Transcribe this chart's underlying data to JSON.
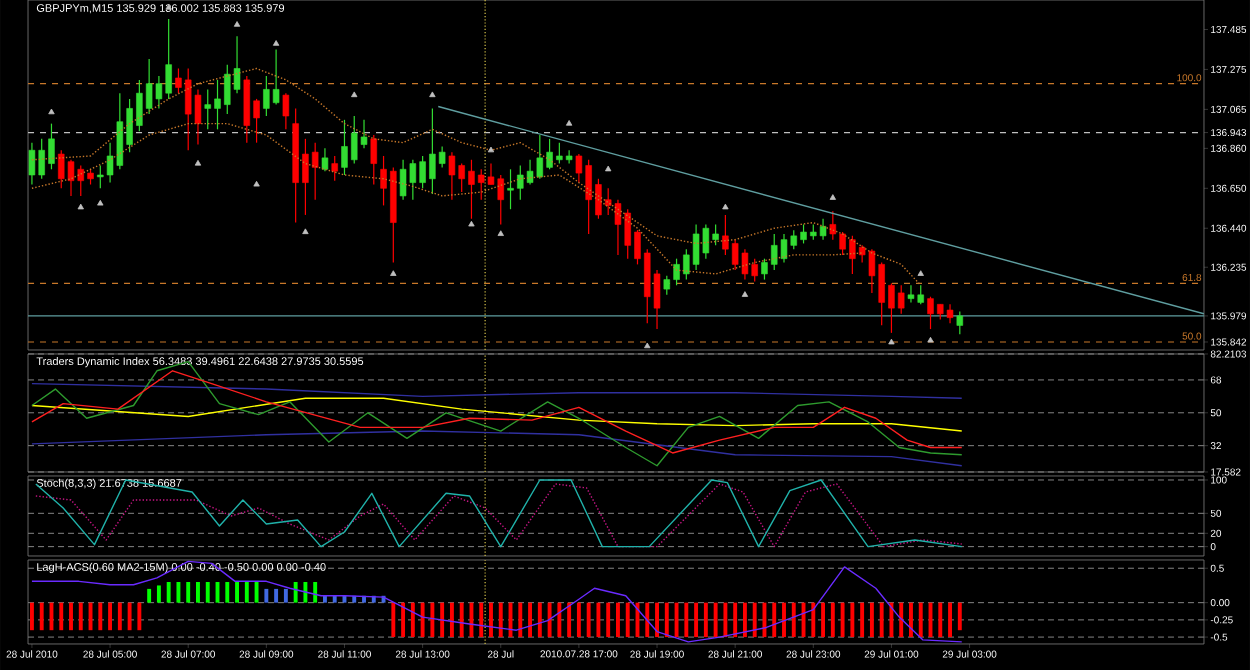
{
  "chart_data": [
    {
      "type": "candlestick",
      "title": "GBPJPYm,M15 135.929 136.002 135.883 135.979",
      "tick_labels": "y",
      "xlim": [
        "2010-07-28T02:54",
        "2010-07-29T09:00"
      ],
      "ylim": [
        135.8,
        137.64
      ],
      "yticks": [
        137.485,
        137.275,
        137.065,
        136.943,
        {
          "value": 136.86,
          "label": "136.860"
        },
        {
          "value": 136.65,
          "label": "136.650"
        },
        {
          "value": 136.44,
          "label": "136.440"
        },
        136.235,
        135.979,
        135.842
      ],
      "x": [
        "2010-07-28T03:00",
        "2010-07-28T03:15",
        "2010-07-28T03:30",
        "2010-07-28T03:45",
        "2010-07-28T04:00",
        "2010-07-28T04:15",
        "2010-07-28T04:30",
        "2010-07-28T04:45",
        "2010-07-28T05:00",
        "2010-07-28T05:15",
        "2010-07-28T05:30",
        "2010-07-28T05:45",
        "2010-07-28T06:00",
        "2010-07-28T06:15",
        "2010-07-28T06:30",
        "2010-07-28T06:45",
        "2010-07-28T07:00",
        "2010-07-28T07:15",
        "2010-07-28T07:30",
        "2010-07-28T07:45",
        "2010-07-28T08:00",
        "2010-07-28T08:15",
        "2010-07-28T08:30",
        "2010-07-28T08:45",
        "2010-07-28T09:00",
        "2010-07-28T09:15",
        "2010-07-28T09:30",
        "2010-07-28T09:45",
        "2010-07-28T10:00",
        "2010-07-28T10:15",
        "2010-07-28T10:30",
        "2010-07-28T10:45",
        "2010-07-28T11:00",
        "2010-07-28T11:15",
        "2010-07-28T11:30",
        "2010-07-28T11:45",
        "2010-07-28T12:00",
        "2010-07-28T12:15",
        "2010-07-28T12:30",
        "2010-07-28T12:45",
        "2010-07-28T13:00",
        "2010-07-28T13:15",
        "2010-07-28T13:30",
        "2010-07-28T13:45",
        "2010-07-28T14:00",
        "2010-07-28T14:15",
        "2010-07-28T14:30",
        "2010-07-28T14:45",
        "2010-07-28T15:00",
        "2010-07-28T15:15",
        "2010-07-28T15:30",
        "2010-07-28T15:45",
        "2010-07-28T16:00",
        "2010-07-28T16:15",
        "2010-07-28T16:30",
        "2010-07-28T16:45",
        "2010-07-28T17:00",
        "2010-07-28T17:15",
        "2010-07-28T17:30",
        "2010-07-28T17:45",
        "2010-07-28T18:00",
        "2010-07-28T18:15",
        "2010-07-28T18:30",
        "2010-07-28T18:45",
        "2010-07-28T19:00",
        "2010-07-28T19:15",
        "2010-07-28T19:30",
        "2010-07-28T19:45",
        "2010-07-28T20:00",
        "2010-07-28T20:15",
        "2010-07-28T20:30",
        "2010-07-28T20:45",
        "2010-07-28T21:00",
        "2010-07-28T21:15",
        "2010-07-28T21:30",
        "2010-07-28T21:45",
        "2010-07-28T22:00",
        "2010-07-28T22:15",
        "2010-07-28T22:30",
        "2010-07-28T22:45",
        "2010-07-28T23:00",
        "2010-07-28T23:15",
        "2010-07-28T23:30",
        "2010-07-28T23:45",
        "2010-07-29T00:00",
        "2010-07-29T00:15",
        "2010-07-29T00:30",
        "2010-07-29T00:45",
        "2010-07-29T01:00",
        "2010-07-29T01:15",
        "2010-07-29T01:30",
        "2010-07-29T01:45",
        "2010-07-29T02:00",
        "2010-07-29T02:15",
        "2010-07-29T02:30",
        "2010-07-29T02:45"
      ],
      "ohlc": [
        [
          136.72,
          136.89,
          136.67,
          136.85
        ],
        [
          136.72,
          136.91,
          136.7,
          136.85
        ],
        [
          136.78,
          136.99,
          136.75,
          136.91
        ],
        [
          136.83,
          136.85,
          136.65,
          136.7
        ],
        [
          136.79,
          136.8,
          136.61,
          136.69
        ],
        [
          136.75,
          136.77,
          136.61,
          136.69
        ],
        [
          136.73,
          136.75,
          136.67,
          136.7
        ],
        [
          136.71,
          136.77,
          136.65,
          136.72
        ],
        [
          136.72,
          136.89,
          136.68,
          136.82
        ],
        [
          136.77,
          137.15,
          136.75,
          137.0
        ],
        [
          136.88,
          137.12,
          136.84,
          137.07
        ],
        [
          136.98,
          137.22,
          136.95,
          137.15
        ],
        [
          137.07,
          137.33,
          137.04,
          137.2
        ],
        [
          137.12,
          137.24,
          137.07,
          137.2
        ],
        [
          137.15,
          137.54,
          137.12,
          137.3
        ],
        [
          137.23,
          137.28,
          137.15,
          137.18
        ],
        [
          137.22,
          137.28,
          136.85,
          137.04
        ],
        [
          137.14,
          137.17,
          136.88,
          136.99
        ],
        [
          137.07,
          137.17,
          136.96,
          137.09
        ],
        [
          137.07,
          137.22,
          136.96,
          137.12
        ],
        [
          137.09,
          137.3,
          137.04,
          137.25
        ],
        [
          137.17,
          137.45,
          137.15,
          137.28
        ],
        [
          137.22,
          137.24,
          136.89,
          136.98
        ],
        [
          137.11,
          137.12,
          136.89,
          137.02
        ],
        [
          137.07,
          137.24,
          137.03,
          137.17
        ],
        [
          137.1,
          137.38,
          137.09,
          137.17
        ],
        [
          137.14,
          137.15,
          136.96,
          137.03
        ],
        [
          136.99,
          137.07,
          136.47,
          136.68
        ],
        [
          136.83,
          136.91,
          136.51,
          136.68
        ],
        [
          136.84,
          136.89,
          136.59,
          136.76
        ],
        [
          136.75,
          136.86,
          136.74,
          136.81
        ],
        [
          136.78,
          136.82,
          136.69,
          136.74
        ],
        [
          136.76,
          137.01,
          136.72,
          136.87
        ],
        [
          136.8,
          137.03,
          136.78,
          136.94
        ],
        [
          136.88,
          137.01,
          136.86,
          136.92
        ],
        [
          136.91,
          136.93,
          136.67,
          136.78
        ],
        [
          136.75,
          136.82,
          136.56,
          136.65
        ],
        [
          136.74,
          136.76,
          136.26,
          136.47
        ],
        [
          136.61,
          136.8,
          136.59,
          136.75
        ],
        [
          136.68,
          136.8,
          136.59,
          136.78
        ],
        [
          136.68,
          136.82,
          136.65,
          136.79
        ],
        [
          136.7,
          137.07,
          136.62,
          136.83
        ],
        [
          136.78,
          136.87,
          136.76,
          136.84
        ],
        [
          136.82,
          136.84,
          136.59,
          136.72
        ],
        [
          136.77,
          136.78,
          136.63,
          136.7
        ],
        [
          136.74,
          136.8,
          136.49,
          136.67
        ],
        [
          136.72,
          136.75,
          136.59,
          136.68
        ],
        [
          136.71,
          136.78,
          136.67,
          136.67
        ],
        [
          136.7,
          136.72,
          136.46,
          136.59
        ],
        [
          136.64,
          136.75,
          136.54,
          136.65
        ],
        [
          136.65,
          136.77,
          136.59,
          136.72
        ],
        [
          136.68,
          136.8,
          136.67,
          136.74
        ],
        [
          136.71,
          136.93,
          136.7,
          136.81
        ],
        [
          136.76,
          136.91,
          136.75,
          136.84
        ],
        [
          136.8,
          136.89,
          136.78,
          136.82
        ],
        [
          136.8,
          136.85,
          136.78,
          136.82
        ],
        [
          136.82,
          136.83,
          136.68,
          136.73
        ],
        [
          136.77,
          136.8,
          136.41,
          136.59
        ],
        [
          136.67,
          136.7,
          136.49,
          136.51
        ],
        [
          136.59,
          136.65,
          136.51,
          136.56
        ],
        [
          136.57,
          136.59,
          136.3,
          136.46
        ],
        [
          136.52,
          136.54,
          136.28,
          136.35
        ],
        [
          136.42,
          136.43,
          136.25,
          136.28
        ],
        [
          136.31,
          136.33,
          135.94,
          136.08
        ],
        [
          136.2,
          136.22,
          135.91,
          136.02
        ],
        [
          136.12,
          136.19,
          136.09,
          136.17
        ],
        [
          136.17,
          136.28,
          136.14,
          136.25
        ],
        [
          136.2,
          136.33,
          136.17,
          136.3
        ],
        [
          136.25,
          136.46,
          136.22,
          136.41
        ],
        [
          136.31,
          136.46,
          136.28,
          136.44
        ],
        [
          136.38,
          136.46,
          136.35,
          136.41
        ],
        [
          136.4,
          136.51,
          136.3,
          136.33
        ],
        [
          136.36,
          136.38,
          136.22,
          136.25
        ],
        [
          136.31,
          136.33,
          136.17,
          136.2
        ],
        [
          136.25,
          136.28,
          136.16,
          136.19
        ],
        [
          136.2,
          136.28,
          136.17,
          136.26
        ],
        [
          136.25,
          136.41,
          136.22,
          136.35
        ],
        [
          136.28,
          136.41,
          136.26,
          136.38
        ],
        [
          136.35,
          136.43,
          136.33,
          136.4
        ],
        [
          136.38,
          136.46,
          136.36,
          136.42
        ],
        [
          136.4,
          136.46,
          136.38,
          136.42
        ],
        [
          136.4,
          136.49,
          136.38,
          136.45
        ],
        [
          136.46,
          136.53,
          136.38,
          136.41
        ],
        [
          136.41,
          136.42,
          136.3,
          136.33
        ],
        [
          136.38,
          136.4,
          136.2,
          136.28
        ],
        [
          136.34,
          136.35,
          136.26,
          136.3
        ],
        [
          136.32,
          136.33,
          136.1,
          136.19
        ],
        [
          136.25,
          136.26,
          135.93,
          136.05
        ],
        [
          136.14,
          136.15,
          135.89,
          136.02
        ],
        [
          136.1,
          136.14,
          135.99,
          136.02
        ],
        [
          136.07,
          136.14,
          136.05,
          136.09
        ],
        [
          136.05,
          136.14,
          136.04,
          136.09
        ],
        [
          136.07,
          136.08,
          135.91,
          135.99
        ],
        [
          136.04,
          136.04,
          135.96,
          135.99
        ],
        [
          136.01,
          136.04,
          135.94,
          135.97
        ],
        [
          135.929,
          136.002,
          135.883,
          135.979
        ]
      ],
      "colors": [
        "#33dd33",
        "#33dd33",
        "#33dd33",
        "#ff0000",
        "#ff0000",
        "#ff0000",
        "#ff0000",
        "#33dd33",
        "#33dd33",
        "#33dd33",
        "#33dd33",
        "#33dd33",
        "#33dd33",
        "#33dd33",
        "#33dd33",
        "#ff0000",
        "#ff0000",
        "#ff0000",
        "#33dd33",
        "#33dd33",
        "#33dd33",
        "#33dd33",
        "#ff0000",
        "#ff0000",
        "#33dd33",
        "#33dd33",
        "#ff0000",
        "#ff0000",
        "#ff0000",
        "#ff0000",
        "#33dd33",
        "#ff0000",
        "#33dd33",
        "#33dd33",
        "#33dd33",
        "#ff0000",
        "#ff0000",
        "#ff0000",
        "#33dd33",
        "#33dd33",
        "#33dd33",
        "#33dd33",
        "#33dd33",
        "#ff0000",
        "#ff0000",
        "#ff0000",
        "#ff0000",
        "#ff0000",
        "#ff0000",
        "#33dd33",
        "#33dd33",
        "#33dd33",
        "#33dd33",
        "#33dd33",
        "#33dd33",
        "#33dd33",
        "#ff0000",
        "#ff0000",
        "#ff0000",
        "#ff0000",
        "#ff0000",
        "#ff0000",
        "#ff0000",
        "#ff0000",
        "#ff0000",
        "#33dd33",
        "#33dd33",
        "#33dd33",
        "#33dd33",
        "#33dd33",
        "#33dd33",
        "#ff0000",
        "#ff0000",
        "#ff0000",
        "#ff0000",
        "#33dd33",
        "#33dd33",
        "#33dd33",
        "#33dd33",
        "#33dd33",
        "#33dd33",
        "#33dd33",
        "#ff0000",
        "#ff0000",
        "#ff0000",
        "#ff0000",
        "#ff0000",
        "#ff0000",
        "#ff0000",
        "#ff0000",
        "#33dd33",
        "#33dd33",
        "#ff0000",
        "#ff0000",
        "#ff0000",
        "#33dd33"
      ],
      "ref_lines": [
        {
          "axis": "y",
          "value": 137.2,
          "color": "#c8782a",
          "line_style": "dashed"
        },
        {
          "axis": "y",
          "value": 136.943,
          "color": "#c0c0c0",
          "line_style": "dashed"
        },
        {
          "axis": "y",
          "value": 136.15,
          "color": "#c8782a",
          "line_style": "dashed"
        },
        {
          "axis": "y",
          "value": 135.979,
          "color": "#5f9ea0",
          "line_style": "solid"
        },
        {
          "axis": "y",
          "value": 135.842,
          "color": "#c8782a",
          "line_style": "dashed"
        },
        {
          "axis": "x",
          "value": "2010-07-28T14:36",
          "color": "#d4c04a",
          "line_style": "dotted"
        }
      ],
      "annotations": [
        {
          "text": "100.0",
          "x": "2010-07-29T09:00",
          "y": 137.2
        },
        {
          "text": "61.8",
          "x": "2010-07-29T09:00",
          "y": 136.15
        },
        {
          "text": "50.0",
          "x": "2010-07-29T09:00",
          "y": 135.842
        }
      ],
      "series": [
        {
          "type": "line",
          "color": "#5f9ea0",
          "x": [
            "2010-07-28T13:24",
            "2010-07-29T09:00"
          ],
          "values": [
            137.08,
            135.99
          ]
        },
        {
          "type": "line",
          "color": "#c8782a",
          "line_style": "dotted",
          "x": [
            "2010-07-28T03:00",
            "2010-07-28T04:30",
            "2010-07-28T05:30",
            "2010-07-28T06:30",
            "2010-07-28T07:15",
            "2010-07-28T08:00",
            "2010-07-28T08:45",
            "2010-07-28T09:30",
            "2010-07-28T10:15",
            "2010-07-28T11:00",
            "2010-07-28T11:45",
            "2010-07-28T12:30",
            "2010-07-28T13:15",
            "2010-07-28T14:00",
            "2010-07-28T14:45",
            "2010-07-28T15:30",
            "2010-07-28T16:15",
            "2010-07-28T17:00",
            "2010-07-28T18:00",
            "2010-07-28T19:00",
            "2010-07-28T20:00",
            "2010-07-28T21:00",
            "2010-07-28T22:00",
            "2010-07-28T23:00",
            "2010-07-28T23:45",
            "2010-07-29T00:30",
            "2010-07-29T01:15",
            "2010-07-29T01:45"
          ],
          "values": [
            136.8,
            136.82,
            136.99,
            137.12,
            137.2,
            137.24,
            137.28,
            137.22,
            137.12,
            136.99,
            136.91,
            136.89,
            136.96,
            136.89,
            136.85,
            136.89,
            136.8,
            136.68,
            136.54,
            136.4,
            136.36,
            136.38,
            136.44,
            136.47,
            136.41,
            136.31,
            136.25,
            136.14
          ]
        },
        {
          "type": "line",
          "color": "#c8782a",
          "line_style": "dotted",
          "x": [
            "2010-07-28T03:00",
            "2010-07-28T04:00",
            "2010-07-28T05:00",
            "2010-07-28T06:00",
            "2010-07-28T07:00",
            "2010-07-28T08:00",
            "2010-07-28T09:00",
            "2010-07-28T10:00",
            "2010-07-28T11:00",
            "2010-07-28T12:00",
            "2010-07-28T12:45",
            "2010-07-28T13:30",
            "2010-07-28T14:30",
            "2010-07-28T15:30",
            "2010-07-28T16:30",
            "2010-07-28T17:30",
            "2010-07-28T18:30",
            "2010-07-28T19:30",
            "2010-07-28T20:30",
            "2010-07-28T21:30",
            "2010-07-28T22:30",
            "2010-07-28T23:30",
            "2010-07-29T00:15"
          ],
          "values": [
            136.65,
            136.7,
            136.8,
            136.93,
            136.99,
            136.99,
            136.93,
            136.78,
            136.72,
            136.7,
            136.66,
            136.61,
            136.63,
            136.7,
            136.72,
            136.59,
            136.44,
            136.22,
            136.2,
            136.26,
            136.3,
            136.3,
            136.31
          ]
        },
        {
          "type": "scatter",
          "color": "#c0c0c0",
          "marker": "triangle",
          "x": [
            "2010-07-28T03:30",
            "2010-07-28T06:30",
            "2010-07-28T08:15",
            "2010-07-28T09:15",
            "2010-07-28T11:15",
            "2010-07-28T13:15",
            "2010-07-28T14:45",
            "2010-07-28T16:45",
            "2010-07-28T17:45",
            "2010-07-28T20:45",
            "2010-07-28T23:30",
            "2010-07-29T01:45"
          ],
          "values": [
            137.05,
            137.6,
            137.51,
            137.41,
            137.14,
            137.14,
            136.85,
            136.99,
            136.75,
            136.55,
            136.6,
            136.2
          ]
        },
        {
          "type": "scatter",
          "color": "#c0c0c0",
          "marker": "triangle",
          "x": [
            "2010-07-28T04:15",
            "2010-07-28T04:45",
            "2010-07-28T07:15",
            "2010-07-28T08:45",
            "2010-07-28T10:00",
            "2010-07-28T12:15",
            "2010-07-28T14:15",
            "2010-07-28T15:00",
            "2010-07-28T18:45",
            "2010-07-28T21:15",
            "2010-07-29T01:00",
            "2010-07-29T02:00"
          ],
          "values": [
            136.55,
            136.57,
            136.78,
            136.67,
            136.42,
            136.2,
            136.46,
            136.41,
            135.82,
            136.09,
            135.84,
            135.85
          ]
        }
      ]
    },
    {
      "type": "line",
      "title": "Traders Dynamic Index 56.3483 39.4961 22.6438 27.9735 30.5595",
      "tick_labels": "y",
      "xlim": [
        "2010-07-28T02:54",
        "2010-07-29T09:00"
      ],
      "ylim": [
        17.582,
        82.2103
      ],
      "yticks": [
        82.2103,
        68,
        50,
        32,
        17.582
      ],
      "grid": "y",
      "ref_lines": [
        {
          "axis": "x",
          "value": "2010-07-28T14:36",
          "color": "#d4c04a",
          "line_style": "dotted"
        }
      ],
      "series": [
        {
          "color": "#3030a0",
          "x": [
            "2010-07-28T03:00",
            "2010-07-28T09:00",
            "2010-07-28T13:00",
            "2010-07-28T17:00",
            "2010-07-28T21:00",
            "2010-07-29T01:00",
            "2010-07-29T02:48"
          ],
          "values": [
            66,
            63,
            59,
            61,
            61,
            59,
            58
          ]
        },
        {
          "color": "#3030a0",
          "x": [
            "2010-07-28T03:00",
            "2010-07-28T09:00",
            "2010-07-28T13:00",
            "2010-07-28T17:00",
            "2010-07-28T21:00",
            "2010-07-29T01:00",
            "2010-07-29T02:48"
          ],
          "values": [
            33,
            38,
            40,
            38,
            27,
            26,
            21
          ]
        },
        {
          "color": "#ffff00",
          "x": [
            "2010-07-28T03:00",
            "2010-07-28T07:00",
            "2010-07-28T10:00",
            "2010-07-28T12:00",
            "2010-07-28T14:00",
            "2010-07-28T17:00",
            "2010-07-28T19:00",
            "2010-07-28T21:00",
            "2010-07-28T23:00",
            "2010-07-29T01:00",
            "2010-07-29T02:48"
          ],
          "values": [
            54,
            48,
            58,
            58,
            52,
            46,
            44,
            43,
            44,
            44,
            40
          ]
        },
        {
          "color": "#2e9b2e",
          "x": [
            "2010-07-28T03:00",
            "2010-07-28T03:36",
            "2010-07-28T04:24",
            "2010-07-28T05:36",
            "2010-07-28T06:12",
            "2010-07-28T07:00",
            "2010-07-28T07:48",
            "2010-07-28T08:48",
            "2010-07-28T09:36",
            "2010-07-28T10:36",
            "2010-07-28T11:36",
            "2010-07-28T12:36",
            "2010-07-28T13:36",
            "2010-07-28T15:00",
            "2010-07-28T16:12",
            "2010-07-28T17:00",
            "2010-07-28T18:12",
            "2010-07-28T19:00",
            "2010-07-28T19:48",
            "2010-07-28T20:36",
            "2010-07-28T21:36",
            "2010-07-28T22:36",
            "2010-07-28T23:24",
            "2010-07-29T00:24",
            "2010-07-29T01:12",
            "2010-07-29T02:00",
            "2010-07-29T02:48"
          ],
          "values": [
            54,
            63,
            47,
            54,
            73,
            78,
            55,
            49,
            56,
            34,
            50,
            36,
            50,
            40,
            56,
            47,
            31,
            21,
            42,
            48,
            36,
            54,
            56,
            45,
            31,
            28,
            27
          ]
        },
        {
          "color": "#ff2020",
          "x": [
            "2010-07-28T03:00",
            "2010-07-28T03:48",
            "2010-07-28T05:12",
            "2010-07-28T06:36",
            "2010-07-28T07:36",
            "2010-07-28T09:00",
            "2010-07-28T10:12",
            "2010-07-28T11:24",
            "2010-07-28T13:00",
            "2010-07-28T14:12",
            "2010-07-28T15:48",
            "2010-07-28T17:00",
            "2010-07-28T18:12",
            "2010-07-28T19:24",
            "2010-07-28T20:36",
            "2010-07-28T22:00",
            "2010-07-28T23:00",
            "2010-07-28T23:48",
            "2010-07-29T00:36",
            "2010-07-29T01:24",
            "2010-07-29T02:00",
            "2010-07-29T02:48"
          ],
          "values": [
            45,
            55,
            52,
            73,
            66,
            56,
            49,
            42,
            42,
            47,
            46,
            53,
            40,
            28,
            35,
            42,
            42,
            53,
            47,
            35,
            31,
            31
          ]
        }
      ]
    },
    {
      "type": "line",
      "title": "Stoch(8,3,3) 21.6738 15.6687",
      "tick_labels": "y",
      "xlim": [
        "2010-07-28T02:54",
        "2010-07-29T09:00"
      ],
      "ylim": [
        -14,
        106
      ],
      "yticks": [
        100,
        50,
        20,
        0
      ],
      "grid": "y",
      "ref_lines": [
        {
          "axis": "x",
          "value": "2010-07-28T14:36",
          "color": "#d4c04a",
          "line_style": "dotted"
        }
      ],
      "series": [
        {
          "color": "#c71585",
          "line_style": "dotted",
          "x": [
            "2010-07-28T03:06",
            "2010-07-28T04:00",
            "2010-07-28T04:54",
            "2010-07-28T05:36",
            "2010-07-28T07:12",
            "2010-07-28T08:06",
            "2010-07-28T08:48",
            "2010-07-28T09:36",
            "2010-07-28T10:36",
            "2010-07-28T11:24",
            "2010-07-28T12:00",
            "2010-07-28T12:48",
            "2010-07-28T13:48",
            "2010-07-28T14:36",
            "2010-07-28T15:24",
            "2010-07-28T16:24",
            "2010-07-28T17:12",
            "2010-07-28T18:00",
            "2010-07-28T19:00",
            "2010-07-28T20:36",
            "2010-07-28T21:12",
            "2010-07-28T22:00",
            "2010-07-28T22:48",
            "2010-07-28T23:36",
            "2010-07-29T00:48",
            "2010-07-29T01:48",
            "2010-07-29T02:48"
          ],
          "values": [
            76,
            70,
            10,
            70,
            70,
            46,
            58,
            34,
            10,
            46,
            64,
            10,
            76,
            58,
            10,
            94,
            88,
            0,
            0,
            94,
            82,
            0,
            82,
            94,
            0,
            10,
            4
          ]
        },
        {
          "color": "#20b2aa",
          "x": [
            "2010-07-28T03:06",
            "2010-07-28T03:48",
            "2010-07-28T04:36",
            "2010-07-28T05:24",
            "2010-07-28T07:06",
            "2010-07-28T07:48",
            "2010-07-28T08:24",
            "2010-07-28T09:00",
            "2010-07-28T09:48",
            "2010-07-28T10:24",
            "2010-07-28T11:00",
            "2010-07-28T11:42",
            "2010-07-28T12:24",
            "2010-07-28T13:36",
            "2010-07-28T14:12",
            "2010-07-28T15:00",
            "2010-07-28T16:00",
            "2010-07-28T16:48",
            "2010-07-28T17:36",
            "2010-07-28T18:48",
            "2010-07-28T20:24",
            "2010-07-28T20:48",
            "2010-07-28T21:36",
            "2010-07-28T22:24",
            "2010-07-28T23:12",
            "2010-07-29T00:24",
            "2010-07-29T01:36",
            "2010-07-29T02:48"
          ],
          "values": [
            94,
            58,
            3,
            100,
            82,
            31,
            70,
            34,
            40,
            0,
            22,
            80,
            0,
            80,
            76,
            0,
            100,
            100,
            0,
            0,
            100,
            96,
            0,
            84,
            100,
            0,
            10,
            0
          ]
        }
      ]
    },
    {
      "type": "bar",
      "title": "LagH-ACS(0.60 MA2-15M) 0.00 -0.40 -0.50 0.00 0.00 -0.40",
      "xlim": [
        "2010-07-28T02:54",
        "2010-07-29T09:00"
      ],
      "ylim": [
        -0.6,
        0.62
      ],
      "x": [
        "2010-07-28T03:00",
        "2010-07-28T03:15",
        "2010-07-28T03:30",
        "2010-07-28T03:45",
        "2010-07-28T04:00",
        "2010-07-28T04:15",
        "2010-07-28T04:30",
        "2010-07-28T04:45",
        "2010-07-28T05:00",
        "2010-07-28T05:15",
        "2010-07-28T05:30",
        "2010-07-28T05:45",
        "2010-07-28T06:00",
        "2010-07-28T06:15",
        "2010-07-28T06:30",
        "2010-07-28T06:45",
        "2010-07-28T07:00",
        "2010-07-28T07:15",
        "2010-07-28T07:30",
        "2010-07-28T07:45",
        "2010-07-28T08:00",
        "2010-07-28T08:15",
        "2010-07-28T08:30",
        "2010-07-28T08:45",
        "2010-07-28T09:00",
        "2010-07-28T09:15",
        "2010-07-28T09:30",
        "2010-07-28T09:45",
        "2010-07-28T10:00",
        "2010-07-28T10:15",
        "2010-07-28T10:30",
        "2010-07-28T10:45",
        "2010-07-28T11:00",
        "2010-07-28T11:15",
        "2010-07-28T11:30",
        "2010-07-28T11:45",
        "2010-07-28T12:00",
        "2010-07-28T12:15",
        "2010-07-28T12:30",
        "2010-07-28T12:45",
        "2010-07-28T13:00",
        "2010-07-28T13:15",
        "2010-07-28T13:30",
        "2010-07-28T13:45",
        "2010-07-28T14:00",
        "2010-07-28T14:15",
        "2010-07-28T14:30",
        "2010-07-28T14:45",
        "2010-07-28T15:00",
        "2010-07-28T15:15",
        "2010-07-28T15:30",
        "2010-07-28T15:45",
        "2010-07-28T16:00",
        "2010-07-28T16:15",
        "2010-07-28T16:30",
        "2010-07-28T16:45",
        "2010-07-28T17:00",
        "2010-07-28T17:15",
        "2010-07-28T17:30",
        "2010-07-28T17:45",
        "2010-07-28T18:00",
        "2010-07-28T18:15",
        "2010-07-28T18:30",
        "2010-07-28T18:45",
        "2010-07-28T19:00",
        "2010-07-28T19:15",
        "2010-07-28T19:30",
        "2010-07-28T19:45",
        "2010-07-28T20:00",
        "2010-07-28T20:15",
        "2010-07-28T20:30",
        "2010-07-28T20:45",
        "2010-07-28T21:00",
        "2010-07-28T21:15",
        "2010-07-28T21:30",
        "2010-07-28T21:45",
        "2010-07-28T22:00",
        "2010-07-28T22:15",
        "2010-07-28T22:30",
        "2010-07-28T22:45",
        "2010-07-28T23:00",
        "2010-07-28T23:15",
        "2010-07-28T23:30",
        "2010-07-28T23:45",
        "2010-07-29T00:00",
        "2010-07-29T00:15",
        "2010-07-29T00:30",
        "2010-07-29T00:45",
        "2010-07-29T01:00",
        "2010-07-29T01:15",
        "2010-07-29T01:30",
        "2010-07-29T01:45",
        "2010-07-29T02:00",
        "2010-07-29T02:15",
        "2010-07-29T02:30",
        "2010-07-29T02:45"
      ],
      "xticks": [
        {
          "value": "2010-07-28T03:00",
          "label": "28 Jul 2010"
        },
        {
          "value": "2010-07-28T05:00",
          "label": "28 Jul 05:00"
        },
        {
          "value": "2010-07-28T07:00",
          "label": "28 Jul 07:00"
        },
        {
          "value": "2010-07-28T09:00",
          "label": "28 Jul 09:00"
        },
        {
          "value": "2010-07-28T11:00",
          "label": "28 Jul 11:00"
        },
        {
          "value": "2010-07-28T13:00",
          "label": "28 Jul 13:00"
        },
        {
          "value": "2010-07-28T15:00",
          "label": "28 Jul"
        },
        {
          "value": "2010-07-28T17:00",
          "label": "2010.07.28 17:00"
        },
        {
          "value": "2010-07-28T19:00",
          "label": "28 Jul 19:00"
        },
        {
          "value": "2010-07-28T21:00",
          "label": "28 Jul 21:00"
        },
        {
          "value": "2010-07-28T23:00",
          "label": "28 Jul 23:00"
        },
        {
          "value": "2010-07-29T01:00",
          "label": "29 Jul 01:00"
        },
        {
          "value": "2010-07-29T03:00",
          "label": "29 Jul 03:00"
        }
      ],
      "yticks": [
        0.5,
        {
          "value": 0,
          "label": "0.00"
        },
        -0.25,
        -0.5
      ],
      "grid": "y",
      "ref_lines": [
        {
          "axis": "x",
          "value": "2010-07-28T14:36",
          "color": "#d4c04a",
          "line_style": "dotted"
        }
      ],
      "series": [
        {
          "type": "bar",
          "values": [
            -0.4,
            -0.4,
            -0.4,
            -0.4,
            -0.4,
            -0.4,
            -0.4,
            -0.4,
            -0.4,
            -0.4,
            -0.4,
            -0.4,
            0.2,
            0.25,
            0.3,
            0.3,
            0.3,
            0.3,
            0.3,
            0.3,
            0.3,
            0.3,
            0.3,
            0.3,
            0.2,
            0.2,
            0.2,
            0.3,
            0.3,
            0.3,
            0.1,
            0.1,
            0.1,
            0.1,
            0.1,
            0.1,
            0.1,
            -0.5,
            -0.5,
            -0.5,
            -0.5,
            -0.5,
            -0.5,
            -0.5,
            -0.5,
            -0.5,
            -0.5,
            -0.5,
            -0.5,
            -0.5,
            -0.5,
            -0.5,
            -0.5,
            -0.5,
            -0.5,
            -0.5,
            -0.5,
            -0.5,
            -0.5,
            -0.5,
            -0.5,
            -0.5,
            -0.5,
            -0.5,
            -0.5,
            -0.5,
            -0.5,
            -0.5,
            -0.5,
            -0.5,
            -0.5,
            -0.5,
            -0.5,
            -0.5,
            -0.5,
            -0.5,
            -0.5,
            -0.5,
            -0.5,
            -0.5,
            -0.5,
            -0.5,
            -0.5,
            -0.5,
            -0.5,
            -0.5,
            -0.5,
            -0.5,
            -0.5,
            -0.5,
            -0.5,
            -0.5,
            -0.5,
            -0.5,
            -0.5,
            -0.4
          ],
          "colors": [
            "#ff0000",
            "#ff0000",
            "#ff0000",
            "#ff0000",
            "#ff0000",
            "#ff0000",
            "#ff0000",
            "#ff0000",
            "#ff0000",
            "#ff0000",
            "#ff0000",
            "#ff0000",
            "#00ff00",
            "#00ff00",
            "#00ff00",
            "#00ff00",
            "#00ff00",
            "#00ff00",
            "#00ff00",
            "#00ff00",
            "#00ff00",
            "#00ff00",
            "#00ff00",
            "#00ff00",
            "#4169e1",
            "#4169e1",
            "#4169e1",
            "#00ff00",
            "#00ff00",
            "#00ff00",
            "#4169e1",
            "#4169e1",
            "#4169e1",
            "#4169e1",
            "#4169e1",
            "#4169e1",
            "#4169e1",
            "#ff0000",
            "#ff0000",
            "#ff0000",
            "#ff0000",
            "#ff0000",
            "#ff0000",
            "#ff0000",
            "#ff0000",
            "#ff0000",
            "#ff0000",
            "#ff0000",
            "#ff0000",
            "#ff0000",
            "#ff0000",
            "#ff0000",
            "#ff0000",
            "#ff0000",
            "#ff0000",
            "#ff0000",
            "#ff0000",
            "#ff0000",
            "#ff0000",
            "#ff0000",
            "#ff0000",
            "#ff0000",
            "#ff0000",
            "#ff0000",
            "#ff0000",
            "#ff0000",
            "#ff0000",
            "#ff0000",
            "#ff0000",
            "#ff0000",
            "#ff0000",
            "#ff0000",
            "#ff0000",
            "#ff0000",
            "#ff0000",
            "#ff0000",
            "#ff0000",
            "#ff0000",
            "#ff0000",
            "#ff0000",
            "#ff0000",
            "#ff0000",
            "#ff0000",
            "#ff0000",
            "#ff0000",
            "#ff0000",
            "#ff0000",
            "#ff0000",
            "#ff0000",
            "#ff0000",
            "#ff0000",
            "#ff0000",
            "#ff0000",
            "#ff0000",
            "#ff0000",
            "#ff0000"
          ]
        },
        {
          "type": "line",
          "color": "#6a2bff",
          "x": [
            "2010-07-28T03:00",
            "2010-07-28T04:12",
            "2010-07-28T05:00",
            "2010-07-28T05:36",
            "2010-07-28T06:12",
            "2010-07-28T07:00",
            "2010-07-28T07:36",
            "2010-07-28T08:12",
            "2010-07-28T09:00",
            "2010-07-28T09:36",
            "2010-07-28T10:24",
            "2010-07-28T11:00",
            "2010-07-28T12:00",
            "2010-07-28T13:00",
            "2010-07-28T14:12",
            "2010-07-28T15:24",
            "2010-07-28T16:12",
            "2010-07-28T17:00",
            "2010-07-28T17:24",
            "2010-07-28T18:12",
            "2010-07-28T19:00",
            "2010-07-28T19:48",
            "2010-07-28T20:36",
            "2010-07-28T21:48",
            "2010-07-28T23:00",
            "2010-07-28T23:48",
            "2010-07-29T00:36",
            "2010-07-29T01:12",
            "2010-07-29T01:48",
            "2010-07-29T02:48"
          ],
          "values": [
            0.31,
            0.31,
            0.26,
            0.26,
            0.36,
            0.6,
            0.57,
            0.31,
            0.31,
            0.21,
            0.1,
            0.1,
            0.08,
            -0.21,
            -0.31,
            -0.4,
            -0.26,
            0.05,
            0.21,
            0.1,
            -0.42,
            -0.57,
            -0.5,
            -0.36,
            -0.1,
            0.52,
            0.21,
            -0.21,
            -0.54,
            -0.57
          ]
        }
      ]
    }
  ]
}
